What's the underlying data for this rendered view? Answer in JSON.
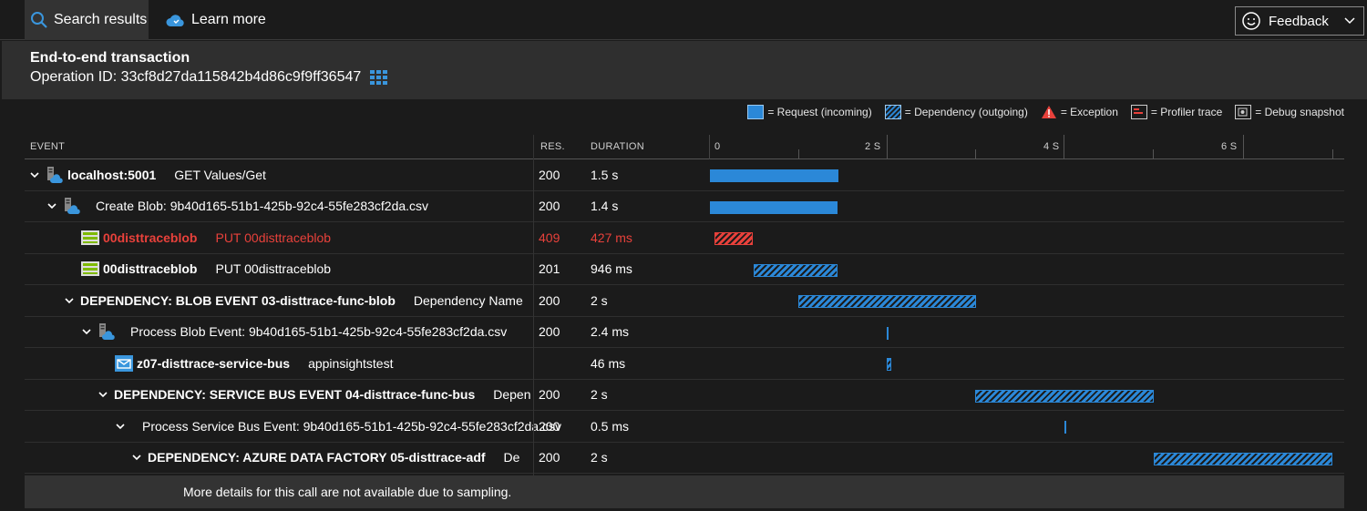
{
  "toolbar": {
    "search_label": "Search results",
    "learn_label": "Learn more",
    "feedback_label": "Feedback"
  },
  "header": {
    "title": "End-to-end transaction",
    "operation_id": "Operation ID: 33cf8d27da115842b4d86c9f9ff36547"
  },
  "legend": {
    "request": "= Request (incoming)",
    "dependency": "= Dependency (outgoing)",
    "exception": "= Exception",
    "profiler": "= Profiler trace",
    "debug": "= Debug snapshot"
  },
  "columns": {
    "event": "EVENT",
    "res": "RES.",
    "duration": "DURATION"
  },
  "ticks": [
    "0",
    "2 S",
    "4 S",
    "6 S"
  ],
  "rows": [
    {
      "name": "localhost:5001",
      "detail": "GET Values/Get",
      "res": "200",
      "duration": "1.5 s"
    },
    {
      "name": "",
      "detail": "Create Blob: 9b40d165-51b1-425b-92c4-55fe283cf2da.csv",
      "res": "200",
      "duration": "1.4 s"
    },
    {
      "name": "00disttraceblob",
      "detail": "PUT 00disttraceblob",
      "res": "409",
      "duration": "427 ms"
    },
    {
      "name": "00disttraceblob",
      "detail": "PUT 00disttraceblob",
      "res": "201",
      "duration": "946 ms"
    },
    {
      "name": "DEPENDENCY: BLOB EVENT 03-disttrace-func-blob",
      "detail": "Dependency Name",
      "res": "200",
      "duration": "2 s"
    },
    {
      "name": "",
      "detail": "Process Blob Event: 9b40d165-51b1-425b-92c4-55fe283cf2da.csv",
      "res": "200",
      "duration": "2.4 ms"
    },
    {
      "name": "z07-disttrace-service-bus",
      "detail": "appinsightstest",
      "res": "",
      "duration": "46 ms"
    },
    {
      "name": "DEPENDENCY: SERVICE BUS EVENT 04-disttrace-func-bus",
      "detail": "Depen",
      "res": "200",
      "duration": "2 s"
    },
    {
      "name": "",
      "detail": "Process Service Bus Event: 9b40d165-51b1-425b-92c4-55fe283cf2da.csv",
      "res": "200",
      "duration": "0.5 ms"
    },
    {
      "name": "DEPENDENCY: AZURE DATA FACTORY 05-disttrace-adf",
      "detail": "De",
      "res": "200",
      "duration": "2 s"
    }
  ],
  "note": "More details for this call are not available due to sampling.",
  "colors": {
    "request": "#2b88d8",
    "error": "#e8413b"
  }
}
